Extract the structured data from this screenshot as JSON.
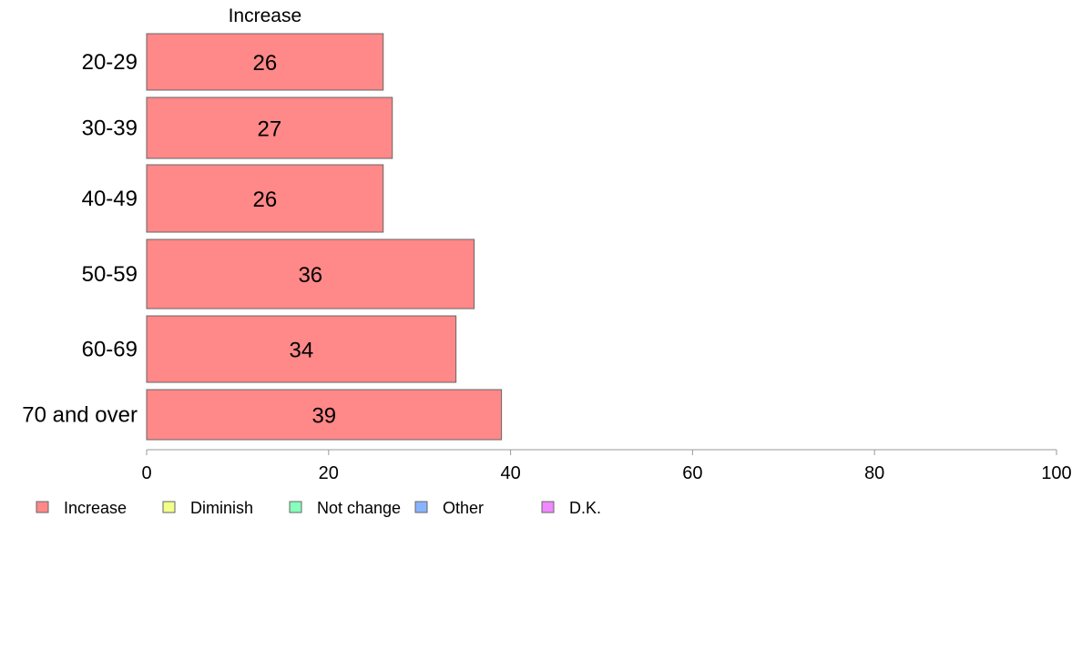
{
  "chart_data": {
    "type": "bar",
    "orientation": "horizontal",
    "stacked": true,
    "categories": [
      "20-29",
      "30-39",
      "40-49",
      "50-59",
      "60-69",
      "70 and over"
    ],
    "series": [
      {
        "name": "Increase",
        "color": "#ff8888",
        "values": [
          26,
          27,
          26,
          36,
          34,
          39
        ]
      }
    ],
    "series_header": "Increase",
    "xlim": [
      0,
      100
    ],
    "xticks": [
      0,
      20,
      40,
      60,
      80,
      100
    ],
    "grid": false,
    "legend_position": "bottom-left",
    "legend": [
      {
        "label": "Increase",
        "color": "#ff8888"
      },
      {
        "label": "Diminish",
        "color": "#f2ff88"
      },
      {
        "label": "Not change",
        "color": "#88ffbb"
      },
      {
        "label": "Other",
        "color": "#88b4ff"
      },
      {
        "label": "D.K.",
        "color": "#f088ff"
      }
    ]
  }
}
